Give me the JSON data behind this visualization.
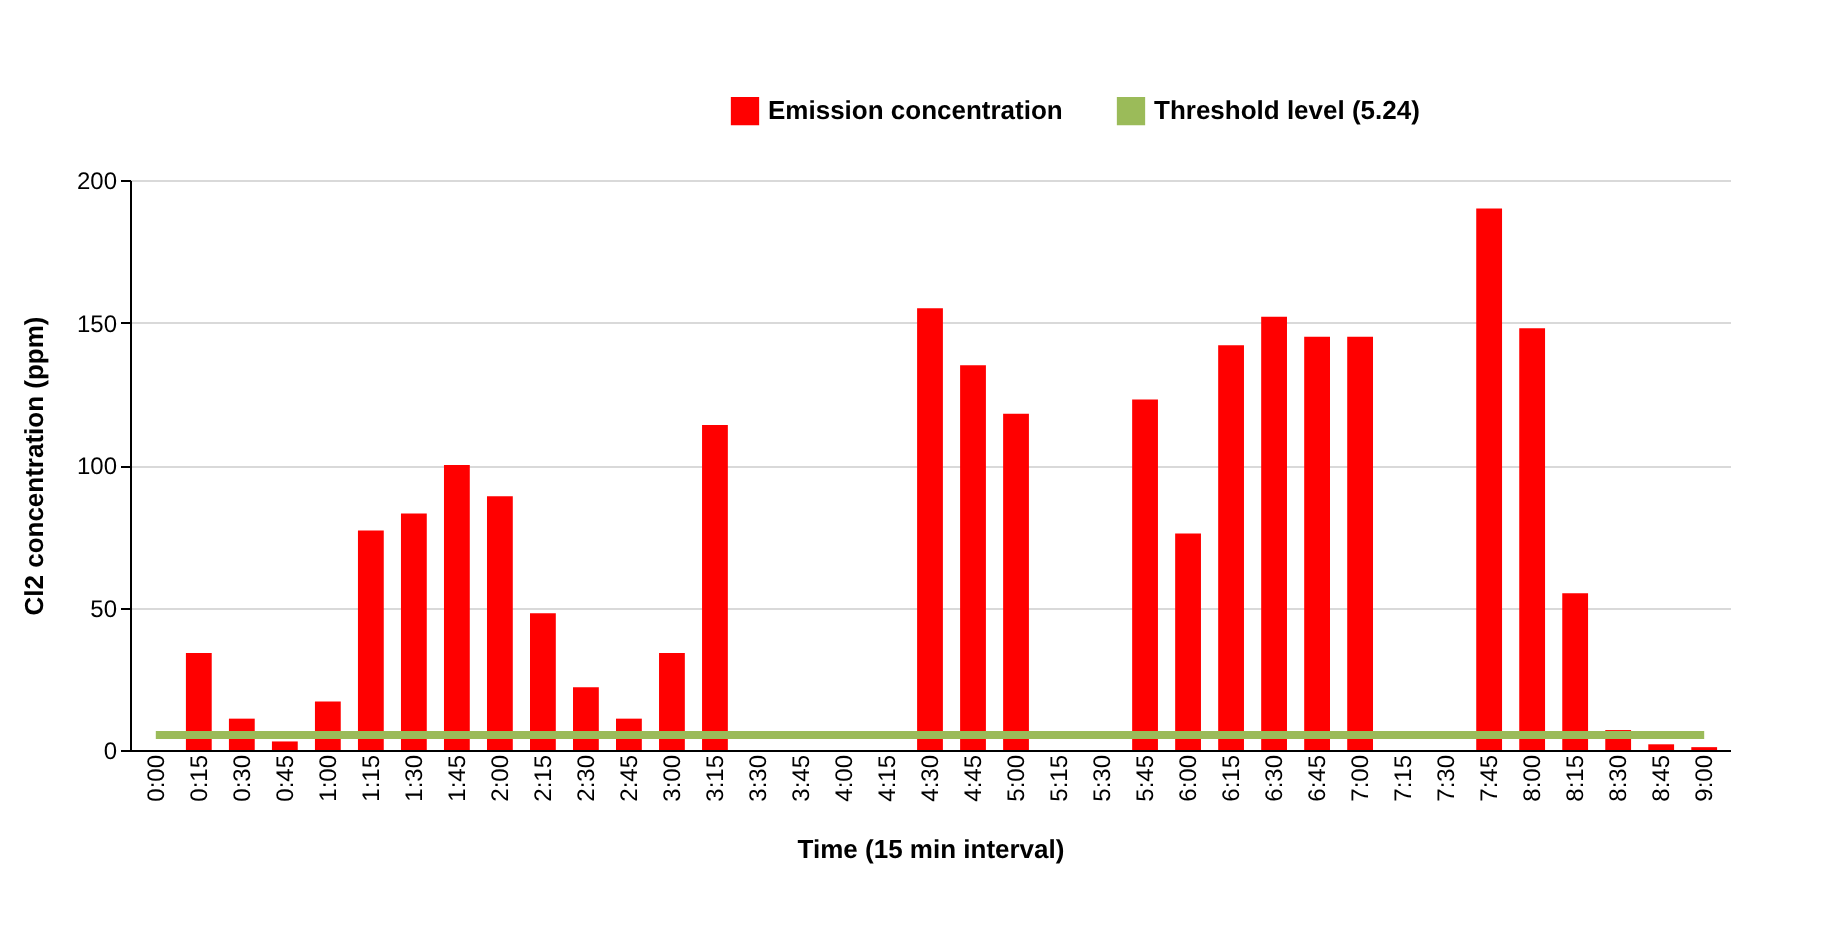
{
  "chart_data": {
    "type": "bar",
    "xlabel": "Time (15 min interval)",
    "ylabel": "Cl2 concentration (ppm)",
    "categories": [
      "0:00",
      "0:15",
      "0:30",
      "0:45",
      "1:00",
      "1:15",
      "1:30",
      "1:45",
      "2:00",
      "2:15",
      "2:30",
      "2:45",
      "3:00",
      "3:15",
      "3:30",
      "3:45",
      "4:00",
      "4:15",
      "4:30",
      "4:45",
      "5:00",
      "5:15",
      "5:30",
      "5:45",
      "6:00",
      "6:15",
      "6:30",
      "6:45",
      "7:00",
      "7:15",
      "7:30",
      "7:45",
      "8:00",
      "8:15",
      "8:30",
      "8:45",
      "9:00"
    ],
    "series": [
      {
        "name": "Emission concentration",
        "color": "#ff0000",
        "values": [
          0,
          34,
          11,
          3,
          17,
          77,
          83,
          100,
          89,
          48,
          22,
          11,
          34,
          114,
          0,
          0,
          0,
          0,
          155,
          135,
          118,
          0,
          0,
          123,
          76,
          142,
          152,
          145,
          145,
          0,
          0,
          190,
          148,
          55,
          7,
          2,
          1
        ]
      },
      {
        "name": "Threshold level (5.24)",
        "type": "line",
        "color": "#9bbb59",
        "values": [
          5.24,
          5.24,
          5.24,
          5.24,
          5.24,
          5.24,
          5.24,
          5.24,
          5.24,
          5.24,
          5.24,
          5.24,
          5.24,
          5.24,
          5.24,
          5.24,
          5.24,
          5.24,
          5.24,
          5.24,
          5.24,
          5.24,
          5.24,
          5.24,
          5.24,
          5.24,
          5.24,
          5.24,
          5.24,
          5.24,
          5.24,
          5.24,
          5.24,
          5.24,
          5.24,
          5.24,
          5.24
        ]
      }
    ],
    "ylim": [
      0,
      200
    ],
    "yticks": [
      0,
      50,
      100,
      150,
      200
    ],
    "grid": "y",
    "legend": "top",
    "line_style": "solid"
  }
}
